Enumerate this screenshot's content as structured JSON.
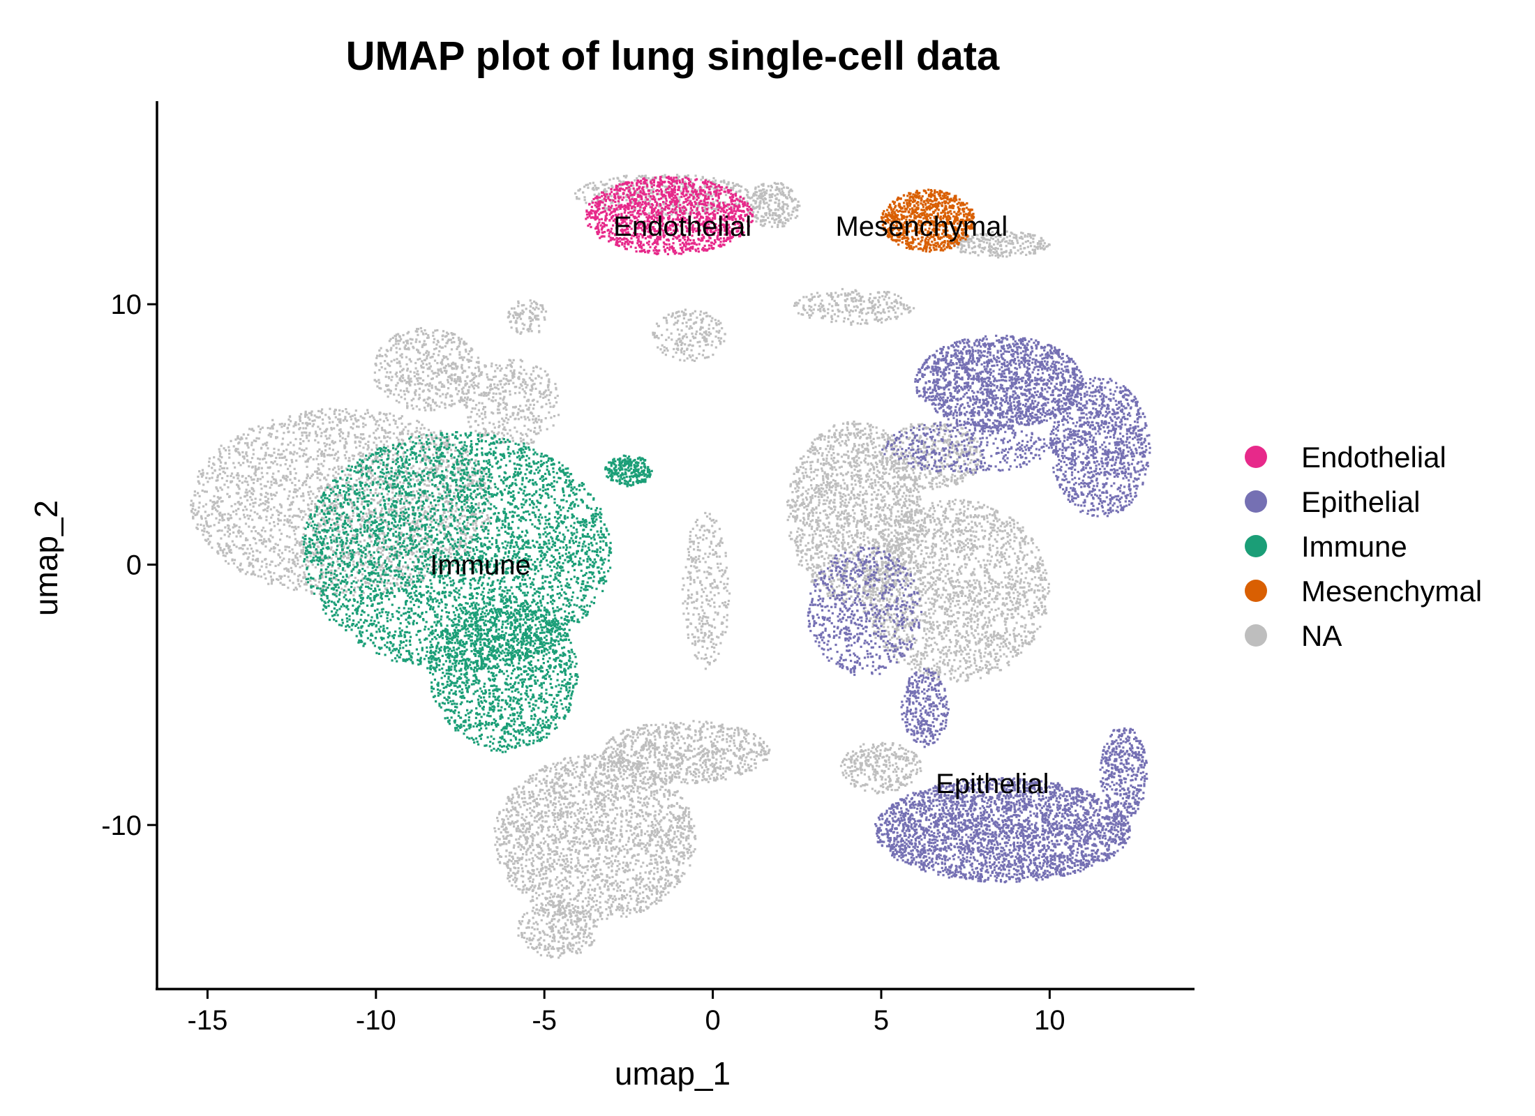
{
  "chart_data": {
    "type": "scatter",
    "title": "UMAP plot of lung single-cell data",
    "xlabel": "umap_1",
    "ylabel": "umap_2",
    "xlim": [
      -16.5,
      14.3
    ],
    "ylim": [
      -16.3,
      17.8
    ],
    "xticks": [
      -15,
      -10,
      -5,
      0,
      5,
      10
    ],
    "yticks": [
      -10,
      0,
      10
    ],
    "grid": false,
    "legend_position": "right",
    "series": [
      {
        "name": "Endothelial",
        "color": "#E7298A"
      },
      {
        "name": "Epithelial",
        "color": "#7570B3"
      },
      {
        "name": "Immune",
        "color": "#1B9E77"
      },
      {
        "name": "Mesenchymal",
        "color": "#D95F02"
      },
      {
        "name": "NA",
        "color": "#BEBEBE"
      }
    ],
    "cluster_labels": [
      {
        "text": "Endothelial",
        "x": -0.9,
        "y": 13.0
      },
      {
        "text": "Mesenchymal",
        "x": 6.2,
        "y": 13.0
      },
      {
        "text": "Immune",
        "x": -6.9,
        "y": 0.0
      },
      {
        "text": "Epithelial",
        "x": 8.3,
        "y": -8.4
      }
    ],
    "regions": [
      {
        "category": "NA",
        "cx": -11.0,
        "cy": 2.4,
        "rx": 4.5,
        "ry": 3.6,
        "count": 2600
      },
      {
        "category": "Immune",
        "cx": -7.6,
        "cy": 0.5,
        "rx": 4.6,
        "ry": 4.6,
        "count": 4200
      },
      {
        "category": "Immune",
        "cx": -6.2,
        "cy": -4.2,
        "rx": 2.2,
        "ry": 3.0,
        "count": 1500
      },
      {
        "category": "NA",
        "cx": -8.5,
        "cy": 7.5,
        "rx": 1.6,
        "ry": 1.6,
        "count": 500
      },
      {
        "category": "NA",
        "cx": -6.0,
        "cy": 6.2,
        "rx": 1.5,
        "ry": 1.7,
        "count": 400
      },
      {
        "category": "NA",
        "cx": -3.5,
        "cy": -10.5,
        "rx": 3.0,
        "ry": 3.2,
        "count": 2200
      },
      {
        "category": "NA",
        "cx": -0.8,
        "cy": -7.2,
        "rx": 2.5,
        "ry": 1.2,
        "count": 800
      },
      {
        "category": "NA",
        "cx": -4.6,
        "cy": -14.0,
        "rx": 1.2,
        "ry": 1.1,
        "count": 300
      },
      {
        "category": "NA",
        "cx": -1.5,
        "cy": 14.2,
        "rx": 2.6,
        "ry": 0.8,
        "count": 450
      },
      {
        "category": "Endothelial",
        "cx": -1.3,
        "cy": 13.4,
        "rx": 2.5,
        "ry": 1.5,
        "count": 1500
      },
      {
        "category": "NA",
        "cx": 1.8,
        "cy": 13.8,
        "rx": 0.8,
        "ry": 0.9,
        "count": 250
      },
      {
        "category": "Mesenchymal",
        "cx": 6.4,
        "cy": 13.2,
        "rx": 1.4,
        "ry": 1.2,
        "count": 900
      },
      {
        "category": "NA",
        "cx": 8.5,
        "cy": 12.3,
        "rx": 1.5,
        "ry": 0.5,
        "count": 250
      },
      {
        "category": "NA",
        "cx": 4.2,
        "cy": 9.9,
        "rx": 1.8,
        "ry": 0.7,
        "count": 250
      },
      {
        "category": "NA",
        "cx": -5.5,
        "cy": 9.5,
        "rx": 0.6,
        "ry": 0.7,
        "count": 100
      },
      {
        "category": "NA",
        "cx": -0.7,
        "cy": 8.8,
        "rx": 1.1,
        "ry": 1.0,
        "count": 200
      },
      {
        "category": "NA",
        "cx": 4.2,
        "cy": 2.0,
        "rx": 2.0,
        "ry": 3.5,
        "count": 1600
      },
      {
        "category": "NA",
        "cx": 7.2,
        "cy": -1.0,
        "rx": 2.8,
        "ry": 3.5,
        "count": 2000
      },
      {
        "category": "Epithelial",
        "cx": 4.5,
        "cy": -1.8,
        "rx": 1.7,
        "ry": 2.5,
        "count": 700
      },
      {
        "category": "Epithelial",
        "cx": 8.5,
        "cy": 7.0,
        "rx": 2.5,
        "ry": 1.8,
        "count": 1700
      },
      {
        "category": "Epithelial",
        "cx": 11.5,
        "cy": 4.5,
        "rx": 1.5,
        "ry": 2.7,
        "count": 1100
      },
      {
        "category": "Epithelial",
        "cx": 7.5,
        "cy": 4.5,
        "rx": 2.5,
        "ry": 1.0,
        "count": 400
      },
      {
        "category": "NA",
        "cx": 6.5,
        "cy": 4.2,
        "rx": 1.5,
        "ry": 1.3,
        "count": 400
      },
      {
        "category": "Epithelial",
        "cx": 8.6,
        "cy": -10.2,
        "rx": 3.8,
        "ry": 2.0,
        "count": 3000
      },
      {
        "category": "Epithelial",
        "cx": 12.2,
        "cy": -8.0,
        "rx": 0.7,
        "ry": 1.8,
        "count": 400
      },
      {
        "category": "NA",
        "cx": 5.0,
        "cy": -7.8,
        "rx": 1.2,
        "ry": 1.0,
        "count": 300
      },
      {
        "category": "Epithelial",
        "cx": 6.3,
        "cy": -5.5,
        "rx": 0.7,
        "ry": 1.5,
        "count": 300
      },
      {
        "category": "NA",
        "cx": -0.2,
        "cy": -1.0,
        "rx": 0.7,
        "ry": 3.0,
        "count": 300
      },
      {
        "category": "Immune",
        "cx": -2.5,
        "cy": 3.6,
        "rx": 0.7,
        "ry": 0.6,
        "count": 250
      }
    ]
  }
}
